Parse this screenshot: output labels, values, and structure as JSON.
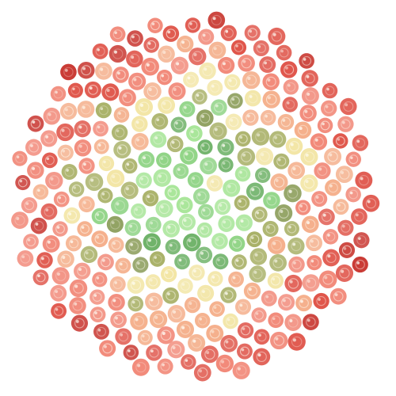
{
  "image": {
    "subject": "phyllotaxis-dot-pattern",
    "dot_count": 300,
    "palette": {
      "deep_red": "#c8362e",
      "red": "#e0574b",
      "salmon": "#f28a7a",
      "peach": "#f5b08c",
      "cream": "#f3e6a6",
      "olive": "#a8b066",
      "dark_olive": "#889a55",
      "light_green": "#a9e69a",
      "green": "#8fd485",
      "dark_green": "#6fb36a",
      "highlight": "#fffdf5"
    }
  }
}
